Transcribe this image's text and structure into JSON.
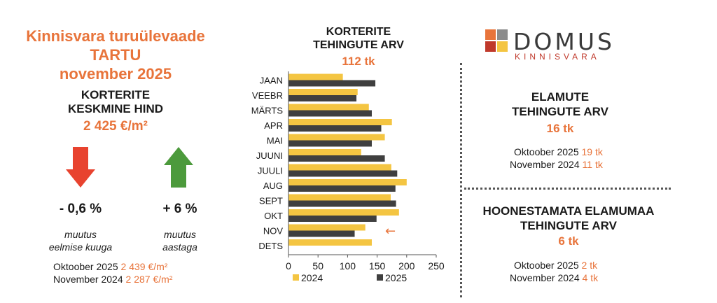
{
  "left": {
    "title_line1": "Kinnisvara turuülevaade",
    "title_line2": "TARTU",
    "title_line3": "november 2025",
    "subtitle_line1": "KORTERITE",
    "subtitle_line2": "KESKMINE HIND",
    "price": "2 425 €/m²",
    "down_pct": "- 0,6 %",
    "up_pct": "+ 6 %",
    "down_note_line1": "muutus",
    "down_note_line2": "eelmise kuuga",
    "up_note_line1": "muutus",
    "up_note_line2": "aastaga",
    "cmp1_label": "Oktoober 2025",
    "cmp1_value": "2 439 €/m²",
    "cmp2_label": "November 2024",
    "cmp2_value": "2 287 €/m²",
    "colors": {
      "down_arrow": "#e8432f",
      "up_arrow": "#4c9a3c"
    }
  },
  "chart_data": {
    "type": "bar",
    "orientation": "horizontal",
    "title_line1": "KORTERITE",
    "title_line2": "TEHINGUTE ARV",
    "total": "112 tk",
    "categories": [
      "JAAN",
      "VEEBR",
      "MÄRTS",
      "APR",
      "MAI",
      "JUUNI",
      "JUULI",
      "AUG",
      "SEPT",
      "OKT",
      "NOV",
      "DETS"
    ],
    "series": [
      {
        "name": "2024",
        "color": "#f4c542",
        "values": [
          92,
          117,
          136,
          175,
          163,
          123,
          174,
          200,
          173,
          187,
          130,
          141
        ]
      },
      {
        "name": "2025",
        "color": "#3f3f3f",
        "values": [
          147,
          115,
          141,
          157,
          141,
          163,
          184,
          181,
          182,
          149,
          112,
          null
        ]
      }
    ],
    "xlim": [
      0,
      250
    ],
    "xticks": [
      0,
      50,
      100,
      150,
      200,
      250
    ],
    "legend_position": "bottom",
    "annotation": {
      "category": "NOV",
      "symbol": "←",
      "color": "#e8743b"
    }
  },
  "right": {
    "logo_text": "DOMUS",
    "logo_sub": "KINNISVARA",
    "logo_colors": [
      "#e8743b",
      "#8c8c8c",
      "#c0392b",
      "#f4c542"
    ],
    "houses_title_line1": "ELAMUTE",
    "houses_title_line2": "TEHINGUTE ARV",
    "houses_total": "16 tk",
    "houses_cmp1_label": "Oktoober 2025",
    "houses_cmp1_value": "19 tk",
    "houses_cmp2_label": "November 2024",
    "houses_cmp2_value": "11 tk",
    "land_title_line1": "HOONESTAMATA ELAMUMAA",
    "land_title_line2": "TEHINGUTE ARV",
    "land_total": "6 tk",
    "land_cmp1_label": "Oktoober 2025",
    "land_cmp1_value": "2 tk",
    "land_cmp2_label": "November 2024",
    "land_cmp2_value": "4 tk"
  }
}
